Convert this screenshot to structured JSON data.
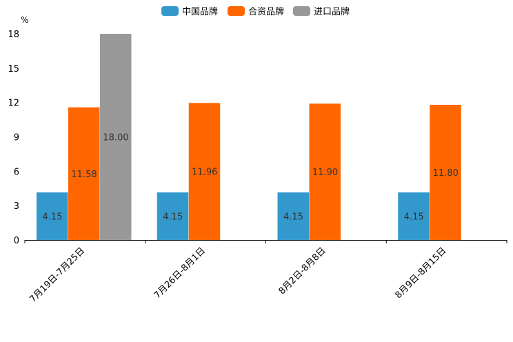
{
  "chart_data": {
    "type": "bar",
    "title": "",
    "xlabel": "",
    "ylabel": "%",
    "ylim": [
      0,
      18
    ],
    "yticks": [
      0,
      3,
      6,
      9,
      12,
      15,
      18
    ],
    "categories": [
      "7月19日-7月25日",
      "7月26日-8月1日",
      "8月2日-8月8日",
      "8月9日-8月15日"
    ],
    "series": [
      {
        "name": "中国品牌",
        "color": "#3399cc",
        "values": [
          4.15,
          4.15,
          4.15,
          4.15
        ],
        "labels": [
          "4.15",
          "4.15",
          "4.15",
          "4.15"
        ]
      },
      {
        "name": "合资品牌",
        "color": "#ff6600",
        "values": [
          11.58,
          11.96,
          11.9,
          11.8
        ],
        "labels": [
          "11.58",
          "11.96",
          "11.90",
          "11.80"
        ]
      },
      {
        "name": "进口品牌",
        "color": "#999999",
        "values": [
          18.0,
          null,
          null,
          null
        ],
        "labels": [
          "18.00",
          null,
          null,
          null
        ]
      }
    ],
    "legend_position": "top-center",
    "grid": false
  }
}
